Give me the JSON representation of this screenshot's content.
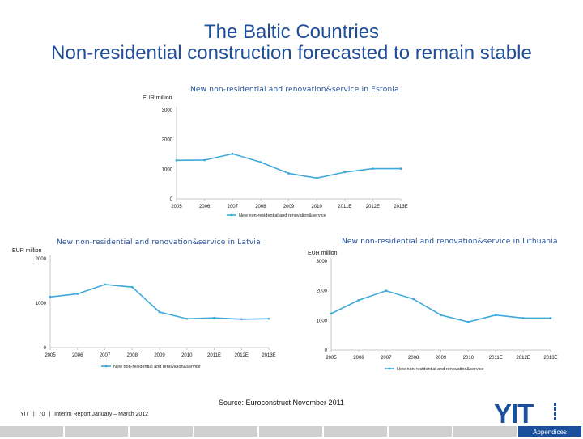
{
  "header": {
    "line1": "The Baltic Countries",
    "line2": "Non-residential construction forecasted to remain stable"
  },
  "source": "Source: Euroconstruct November 2011",
  "footer": {
    "company": "YIT",
    "sep1": "|",
    "page": "70",
    "sep2": "|",
    "report": "Interim Report January – March 2012"
  },
  "logo": {
    "text": "YIT"
  },
  "nav": {
    "active_label": "Appendices"
  },
  "colors": {
    "title": "#1f4e9a",
    "line": "#3fa9d9",
    "axis": "#c8c8c8",
    "nav_active": "#1a4f9c",
    "nav": "#cfcfcf"
  },
  "chart_data": [
    {
      "id": "estonia",
      "type": "line",
      "title": "New non-residential and renovation&service in Estonia",
      "ylabel": "EUR million",
      "x": [
        "2005",
        "2006",
        "2007",
        "2008",
        "2009",
        "2010",
        "2011E",
        "2012E",
        "2013E"
      ],
      "series": [
        {
          "name": "New non-residential and renovation&service",
          "values": [
            1300,
            1310,
            1520,
            1240,
            860,
            700,
            900,
            1020,
            1020
          ]
        }
      ],
      "ylim": [
        0,
        3000
      ],
      "yticks": [
        "0",
        "1000",
        "2000",
        "3000"
      ],
      "grid": false,
      "legend": "bottom"
    },
    {
      "id": "latvia",
      "type": "line",
      "title": "New non-residential and renovation&service in Latvia",
      "ylabel": "EUR million",
      "x": [
        "2005",
        "2006",
        "2007",
        "2008",
        "2009",
        "2010",
        "2011E",
        "2012E",
        "2013E"
      ],
      "series": [
        {
          "name": "New non-residential and renovation&service",
          "values": [
            1140,
            1210,
            1420,
            1360,
            800,
            650,
            670,
            640,
            650
          ]
        }
      ],
      "ylim": [
        0,
        2000
      ],
      "yticks": [
        "0",
        "1000",
        "2000"
      ],
      "grid": false,
      "legend": "bottom"
    },
    {
      "id": "lithuania",
      "type": "line",
      "title": "New non-residential and renovation&service in Lithuania",
      "ylabel": "EUR million",
      "x": [
        "2005",
        "2006",
        "2007",
        "2008",
        "2009",
        "2010",
        "2011E",
        "2012E",
        "2013E"
      ],
      "series": [
        {
          "name": "New non-residential and renovation&service",
          "values": [
            1230,
            1680,
            2000,
            1720,
            1180,
            950,
            1180,
            1080,
            1080
          ]
        }
      ],
      "ylim": [
        0,
        3000
      ],
      "yticks": [
        "0",
        "1000",
        "2000",
        "3000"
      ],
      "grid": false,
      "legend": "bottom"
    }
  ]
}
